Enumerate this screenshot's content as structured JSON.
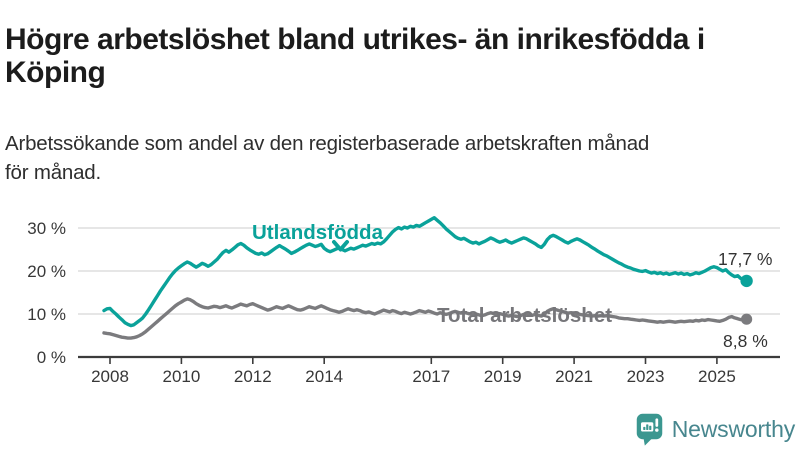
{
  "header": {
    "title": "Högre arbetslöshet bland utrikes- än inrikesfödda i Köping",
    "subtitle": "Arbetssökande som andel av den registerbaserade arbetskraften månad för månad."
  },
  "chart_data": {
    "type": "line",
    "unit": "%",
    "frequency": "monthly",
    "start_month": "2007-11",
    "end_month": "2025-11",
    "grid": "horizontal",
    "legend_position": "inline-annotations",
    "ylim": [
      0,
      33
    ],
    "y_ticks": [
      {
        "value": 0,
        "label": "0 %"
      },
      {
        "value": 10,
        "label": "10 %"
      },
      {
        "value": 20,
        "label": "20 %"
      },
      {
        "value": 30,
        "label": "30 %"
      }
    ],
    "x_ticks": [
      {
        "value": 2008,
        "label": "2008"
      },
      {
        "value": 2010,
        "label": "2010"
      },
      {
        "value": 2012,
        "label": "2012"
      },
      {
        "value": 2014,
        "label": "2014"
      },
      {
        "value": 2017,
        "label": "2017"
      },
      {
        "value": 2019,
        "label": "2019"
      },
      {
        "value": 2021,
        "label": "2021"
      },
      {
        "value": 2023,
        "label": "2023"
      },
      {
        "value": 2025,
        "label": "2025"
      }
    ],
    "series": [
      {
        "name": "Utlandsfödda",
        "color": "#0aa29a",
        "end_value": 17.7,
        "end_label": "17,7 %",
        "values": [
          10.8,
          11.2,
          11.3,
          10.6,
          10.0,
          9.3,
          8.7,
          8.0,
          7.6,
          7.3,
          7.5,
          8.0,
          8.5,
          9.1,
          10.0,
          11.0,
          12.1,
          13.2,
          14.3,
          15.4,
          16.4,
          17.4,
          18.4,
          19.3,
          20.1,
          20.7,
          21.2,
          21.7,
          22.1,
          21.8,
          21.3,
          20.9,
          21.3,
          21.8,
          21.5,
          21.1,
          21.5,
          22.1,
          22.7,
          23.5,
          24.3,
          24.8,
          24.4,
          24.9,
          25.5,
          26.1,
          26.4,
          26.0,
          25.4,
          24.9,
          24.5,
          24.1,
          23.9,
          24.2,
          23.8,
          24.0,
          24.5,
          25.0,
          25.5,
          25.9,
          25.5,
          25.1,
          24.6,
          24.1,
          24.4,
          24.8,
          25.2,
          25.6,
          26.0,
          26.3,
          26.0,
          25.7,
          25.9,
          26.2,
          25.3,
          24.8,
          24.5,
          24.8,
          25.1,
          25.4,
          25.0,
          24.7,
          25.0,
          25.3,
          25.1,
          25.4,
          25.7,
          26.0,
          25.8,
          26.1,
          26.4,
          26.2,
          26.5,
          26.3,
          26.8,
          27.5,
          28.3,
          29.1,
          29.7,
          30.1,
          29.8,
          30.2,
          30.0,
          30.4,
          30.2,
          30.6,
          30.4,
          30.8,
          31.2,
          31.6,
          32.0,
          32.4,
          31.8,
          31.2,
          30.5,
          29.8,
          29.2,
          28.6,
          28.0,
          27.6,
          27.4,
          27.6,
          27.2,
          26.8,
          26.5,
          26.7,
          26.3,
          26.6,
          26.9,
          27.3,
          27.7,
          27.4,
          27.0,
          26.7,
          26.9,
          27.2,
          26.8,
          26.5,
          26.8,
          27.1,
          27.4,
          27.7,
          27.5,
          27.1,
          26.7,
          26.3,
          25.8,
          25.5,
          26.2,
          27.3,
          28.0,
          28.3,
          28.0,
          27.6,
          27.2,
          26.8,
          26.5,
          26.9,
          27.2,
          27.5,
          27.2,
          26.8,
          26.4,
          26.0,
          25.5,
          25.1,
          24.6,
          24.2,
          23.8,
          23.5,
          23.1,
          22.7,
          22.3,
          21.9,
          21.6,
          21.2,
          20.9,
          20.7,
          20.4,
          20.2,
          20.0,
          19.9,
          20.1,
          19.8,
          19.5,
          19.7,
          19.4,
          19.6,
          19.3,
          19.5,
          19.2,
          19.4,
          19.6,
          19.3,
          19.5,
          19.2,
          19.4,
          19.1,
          19.3,
          19.6,
          19.4,
          19.7,
          20.0,
          20.4,
          20.8,
          21.0,
          20.8,
          20.4,
          20.0,
          20.3,
          19.6,
          19.1,
          18.7,
          18.9,
          18.3,
          18.0,
          17.7
        ]
      },
      {
        "name": "Total arbetslöshet",
        "color": "#7b7b7e",
        "end_value": 8.8,
        "end_label": "8,8 %",
        "values": [
          5.6,
          5.5,
          5.4,
          5.2,
          5.0,
          4.8,
          4.6,
          4.5,
          4.4,
          4.4,
          4.5,
          4.7,
          5.0,
          5.4,
          5.9,
          6.5,
          7.1,
          7.7,
          8.3,
          8.9,
          9.5,
          10.1,
          10.7,
          11.3,
          11.9,
          12.4,
          12.8,
          13.2,
          13.5,
          13.3,
          12.9,
          12.4,
          12.0,
          11.7,
          11.5,
          11.4,
          11.6,
          11.8,
          11.7,
          11.5,
          11.7,
          11.9,
          11.6,
          11.4,
          11.7,
          12.0,
          12.3,
          12.1,
          11.9,
          12.2,
          12.4,
          12.1,
          11.8,
          11.5,
          11.2,
          10.9,
          11.1,
          11.4,
          11.7,
          11.5,
          11.3,
          11.6,
          11.9,
          11.6,
          11.3,
          11.0,
          10.9,
          11.1,
          11.4,
          11.7,
          11.5,
          11.3,
          11.6,
          11.9,
          11.6,
          11.3,
          11.0,
          10.8,
          10.6,
          10.4,
          10.6,
          10.9,
          11.2,
          11.0,
          10.8,
          11.0,
          10.8,
          10.5,
          10.3,
          10.5,
          10.2,
          10.0,
          10.3,
          10.6,
          10.9,
          10.7,
          10.5,
          10.8,
          10.6,
          10.3,
          10.1,
          10.4,
          10.2,
          10.0,
          10.2,
          10.5,
          10.8,
          10.6,
          10.4,
          10.7,
          10.5,
          10.2,
          10.0,
          10.3,
          10.1,
          9.9,
          10.1,
          10.4,
          10.6,
          10.4,
          10.2,
          10.4,
          10.2,
          10.0,
          9.8,
          10.0,
          9.8,
          9.6,
          9.8,
          10.1,
          10.3,
          10.1,
          9.9,
          10.1,
          9.9,
          9.7,
          9.5,
          9.7,
          9.5,
          9.4,
          9.6,
          9.9,
          10.1,
          9.9,
          9.7,
          9.9,
          9.7,
          9.5,
          9.9,
          10.6,
          11.0,
          11.2,
          11.0,
          10.8,
          10.6,
          10.4,
          10.2,
          10.3,
          10.2,
          10.0,
          9.9,
          9.8,
          9.7,
          9.6,
          9.5,
          9.6,
          9.5,
          9.6,
          9.5,
          9.6,
          9.5,
          9.4,
          9.3,
          9.1,
          9.0,
          8.9,
          8.9,
          8.8,
          8.7,
          8.6,
          8.5,
          8.6,
          8.5,
          8.4,
          8.3,
          8.2,
          8.1,
          8.2,
          8.1,
          8.2,
          8.3,
          8.2,
          8.1,
          8.2,
          8.3,
          8.2,
          8.3,
          8.4,
          8.3,
          8.5,
          8.4,
          8.6,
          8.5,
          8.7,
          8.6,
          8.5,
          8.4,
          8.3,
          8.5,
          8.8,
          9.2,
          9.4,
          9.1,
          8.9,
          8.7,
          8.6,
          8.8
        ]
      }
    ]
  },
  "colors": {
    "foreign_born_line": "#0aa29a",
    "total_line": "#7b7b7e",
    "gridline": "#d8d8d8",
    "axis": "#3c3c3c",
    "title_text": "#1c1c1c",
    "logo_bubble": "#3b9790",
    "logo_wordmark": "#47868e"
  },
  "logo": {
    "name": "Newsworthy",
    "icon": "newsworthy-bubble-chart-icon"
  }
}
